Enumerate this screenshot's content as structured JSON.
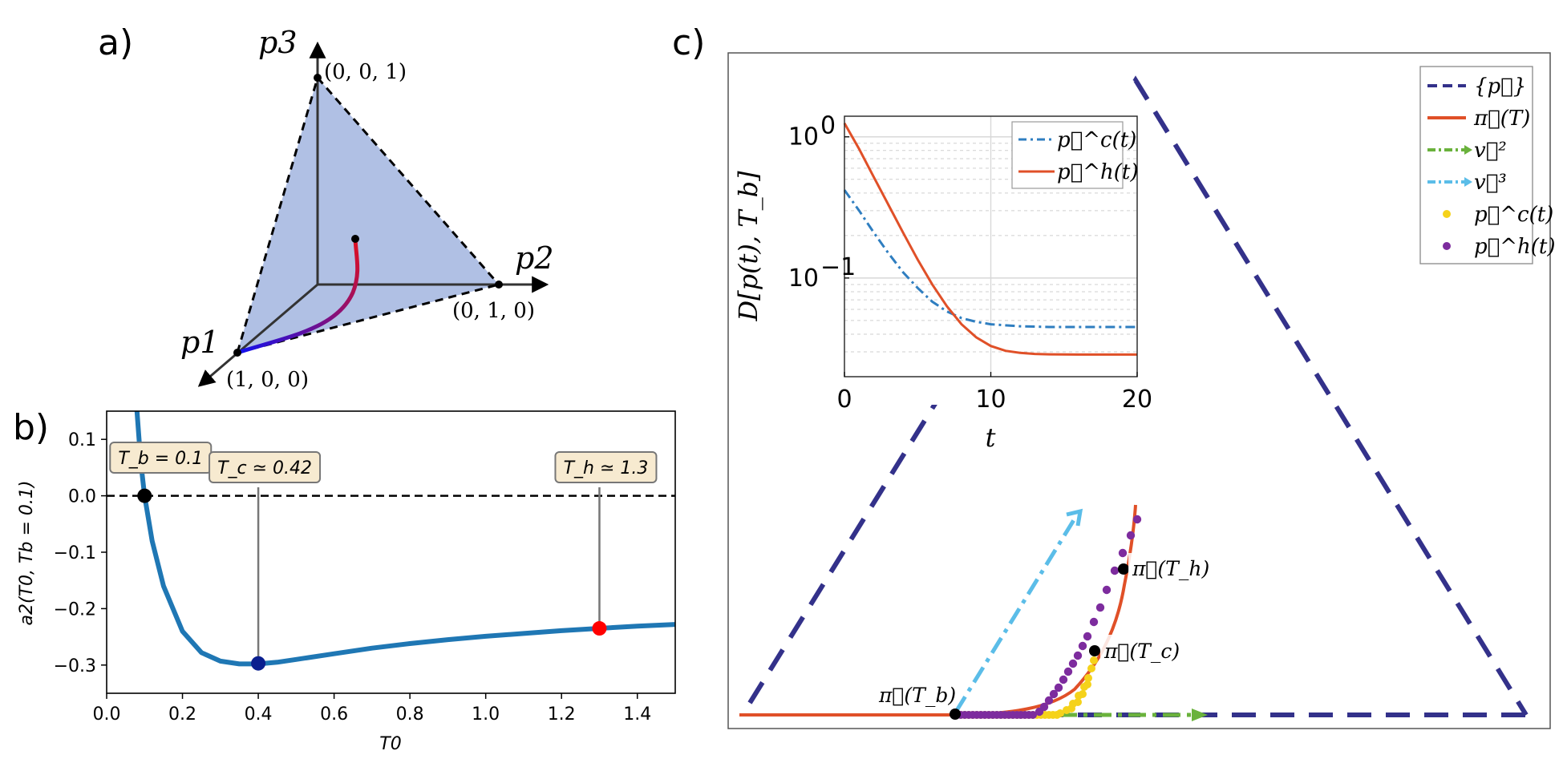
{
  "panels": {
    "a": "a)",
    "b": "b)",
    "c": "c)"
  },
  "simplex": {
    "axis_labels": [
      "p1",
      "p2",
      "p3"
    ],
    "vertex_labels": [
      "(1, 0, 0)",
      "(0, 1, 0)",
      "(0, 0, 1)"
    ],
    "colors": {
      "fill": "#b0c0e4",
      "curve_start": "#1010f0",
      "curve_end": "#e01020"
    }
  },
  "chart_data": [
    {
      "id": "b",
      "type": "line",
      "title": "",
      "xlabel": "T0",
      "ylabel": "a2(T0, Tb = 0.1)",
      "xlim": [
        0.0,
        1.5
      ],
      "ylim": [
        -0.35,
        0.15
      ],
      "xticks": [
        "0.0",
        "0.2",
        "0.4",
        "0.6",
        "0.8",
        "1.0",
        "1.2",
        "1.4"
      ],
      "yticks": [
        "0.1",
        "0.0",
        "−0.1",
        "−0.2",
        "−0.3"
      ],
      "series": [
        {
          "name": "a2",
          "color": "#1f77b4",
          "x": [
            0.08,
            0.09,
            0.1,
            0.12,
            0.15,
            0.2,
            0.25,
            0.3,
            0.35,
            0.4,
            0.45,
            0.5,
            0.6,
            0.7,
            0.8,
            0.9,
            1.0,
            1.1,
            1.2,
            1.3,
            1.4,
            1.5
          ],
          "y": [
            0.15,
            0.06,
            0.0,
            -0.08,
            -0.16,
            -0.24,
            -0.278,
            -0.293,
            -0.298,
            -0.298,
            -0.295,
            -0.29,
            -0.28,
            -0.27,
            -0.262,
            -0.255,
            -0.249,
            -0.244,
            -0.239,
            -0.235,
            -0.231,
            -0.228
          ]
        }
      ],
      "reference_line": {
        "y": 0.0,
        "style": "dashed"
      },
      "annotations": [
        {
          "label": "T_b = 0.1",
          "x": 0.1,
          "y": 0.0,
          "color": "#000000"
        },
        {
          "label": "T_c ≃ 0.42",
          "x": 0.4,
          "y": -0.297,
          "color": "#0a1f8f"
        },
        {
          "label": "T_h ≃ 1.3",
          "x": 1.3,
          "y": -0.235,
          "color": "#ff0000"
        }
      ]
    },
    {
      "id": "c-inset",
      "type": "line",
      "xlabel": "t",
      "ylabel": "D[p(t), T_b]",
      "xlim": [
        0,
        20
      ],
      "ylim_log": [
        0.02,
        1.4
      ],
      "yscale": "log",
      "xticks": [
        "0",
        "10",
        "20"
      ],
      "yticks": [
        "10^0",
        "10^-1"
      ],
      "series": [
        {
          "name": "p⃗^c(t)",
          "style": "dashdot",
          "color": "#2f7ec0",
          "x": [
            0,
            1,
            2,
            3,
            4,
            5,
            6,
            7,
            8,
            9,
            10,
            12,
            14,
            16,
            18,
            20
          ],
          "y": [
            0.42,
            0.3,
            0.21,
            0.15,
            0.11,
            0.085,
            0.068,
            0.058,
            0.052,
            0.049,
            0.047,
            0.0455,
            0.045,
            0.045,
            0.045,
            0.045
          ]
        },
        {
          "name": "p⃗^h(t)",
          "style": "solid",
          "color": "#e05028",
          "x": [
            0,
            1,
            2,
            3,
            4,
            5,
            6,
            7,
            8,
            9,
            10,
            11,
            12,
            13,
            14,
            16,
            18,
            20
          ],
          "y": [
            1.25,
            0.82,
            0.52,
            0.33,
            0.21,
            0.135,
            0.09,
            0.063,
            0.047,
            0.038,
            0.033,
            0.0305,
            0.0295,
            0.029,
            0.0288,
            0.0287,
            0.0287,
            0.0287
          ]
        }
      ]
    },
    {
      "id": "c-main",
      "type": "line",
      "legend": [
        {
          "label": "{p⃗}",
          "style": "dashed",
          "color": "#33318a"
        },
        {
          "label": "π⃗(T)",
          "style": "solid",
          "color": "#e05028"
        },
        {
          "label": "v⃗²",
          "style": "dashdot-arrow",
          "color": "#6ab23c"
        },
        {
          "label": "v⃗³",
          "style": "dashdot-arrow",
          "color": "#5bbde8"
        },
        {
          "label": "p⃗^c(t)",
          "style": "marker",
          "color": "#f5d21a"
        },
        {
          "label": "p⃗^h(t)",
          "style": "marker",
          "color": "#7d2c9e"
        }
      ],
      "annotations": [
        {
          "label": "π⃗(T_b)"
        },
        {
          "label": "π⃗(T_c)"
        },
        {
          "label": "π⃗(T_h)"
        }
      ]
    }
  ]
}
